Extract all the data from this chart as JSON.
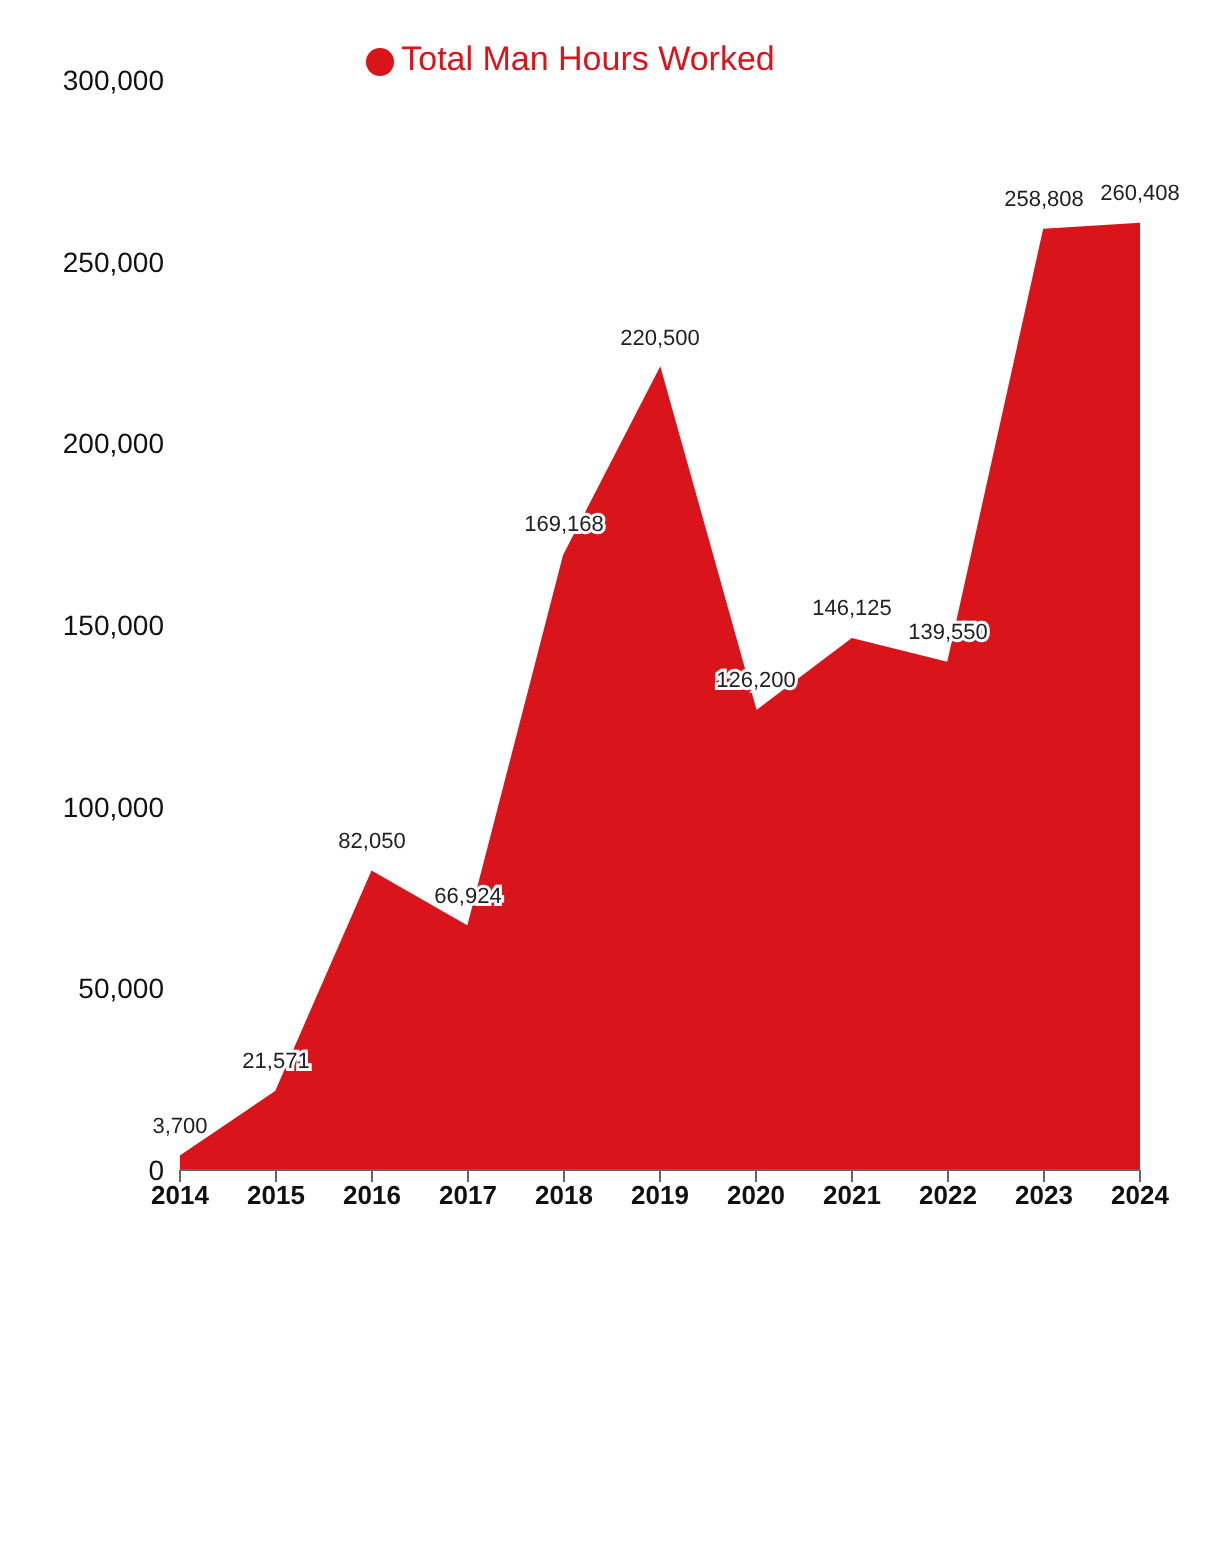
{
  "chart_data": {
    "type": "area",
    "categories": [
      "2014",
      "2015",
      "2016",
      "2017",
      "2018",
      "2019",
      "2020",
      "2021",
      "2022",
      "2023",
      "2024"
    ],
    "series": [
      {
        "name": "Total Man Hours Worked",
        "color": "#d9141b",
        "values": [
          3700,
          21571,
          82050,
          66924,
          169168,
          220500,
          126200,
          146125,
          139550,
          258808,
          260408
        ],
        "value_labels": [
          "3,700",
          "21,571",
          "82,050",
          "66,924",
          "169,168",
          "220,500",
          "126,200",
          "146,125",
          "139,550",
          "258,808",
          "260,408"
        ]
      }
    ],
    "ylim": [
      0,
      300000
    ],
    "yticks": [
      0,
      {
        "value": 50000,
        "label": "50,000"
      },
      {
        "value": 100000,
        "label": "100,000"
      },
      {
        "value": 150000,
        "label": "150,000"
      },
      {
        "value": 200000,
        "label": "200,000"
      },
      {
        "value": 250000,
        "label": "250,000"
      },
      {
        "value": 300000,
        "label": "300,000"
      }
    ],
    "legend": "top"
  }
}
